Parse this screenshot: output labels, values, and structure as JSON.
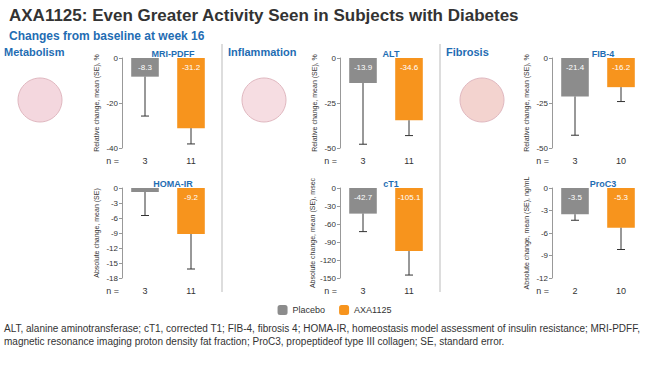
{
  "header": {
    "title": "AXA1125: Even Greater Activity Seen in Subjects with Diabetes",
    "subtitle": "Changes from baseline at week 16"
  },
  "sections": [
    "Metabolism",
    "Inflammation",
    "Fibrosis"
  ],
  "legend": "bottom",
  "footnote": "ALT, alanine aminotransferase; cT1, corrected T1; FIB-4, fibrosis 4; HOMA-IR, homeostasis model assessment of insulin resistance; MRI-PDFF, magnetic resonance imaging proton density fat fraction; ProC3, propeptideof type III collagen; SE, standard error.",
  "chart_data": [
    {
      "type": "bar",
      "title": "MRI-PDFF",
      "y_label": "Relative change, mean (SE), %",
      "x_label": "n =",
      "categories": [
        "3",
        "11"
      ],
      "ylim": [
        -40,
        0
      ],
      "yticks": [
        -40,
        -20,
        0
      ],
      "grid": false,
      "data_labels": true,
      "series": [
        {
          "name": "Placebo",
          "color": "#8c8c8c",
          "values": [
            -8.3,
            null
          ],
          "errors": [
            17.5,
            null
          ]
        },
        {
          "name": "AXA1125",
          "color": "#f7941d",
          "values": [
            null,
            -31.2
          ],
          "errors": [
            null,
            7.0
          ]
        }
      ]
    },
    {
      "type": "bar",
      "title": "HOMA-IR",
      "y_label": "Absolute change, mean (SE)",
      "x_label": "n =",
      "categories": [
        "3",
        "11"
      ],
      "ylim": [
        -18,
        0
      ],
      "yticks": [
        -18,
        -15,
        -12,
        -9,
        -6,
        -3,
        0
      ],
      "grid": false,
      "data_labels": true,
      "series": [
        {
          "name": "Placebo",
          "color": "#8c8c8c",
          "values": [
            -0.8,
            null
          ],
          "errors": [
            4.7,
            null
          ]
        },
        {
          "name": "AXA1125",
          "color": "#f7941d",
          "values": [
            null,
            -9.2
          ],
          "errors": [
            null,
            7.0
          ]
        }
      ]
    },
    {
      "type": "bar",
      "title": "ALT",
      "y_label": "Relative change, mean (SE), %",
      "x_label": "n =",
      "categories": [
        "3",
        "11"
      ],
      "ylim": [
        -50,
        0
      ],
      "yticks": [
        -50,
        -25,
        0
      ],
      "grid": false,
      "data_labels": true,
      "series": [
        {
          "name": "Placebo",
          "color": "#8c8c8c",
          "values": [
            -13.9,
            null
          ],
          "errors": [
            34.0,
            null
          ]
        },
        {
          "name": "AXA1125",
          "color": "#f7941d",
          "values": [
            null,
            -34.6
          ],
          "errors": [
            null,
            8.5
          ]
        }
      ]
    },
    {
      "type": "bar",
      "title": "cT1",
      "y_label": "Absolute change, mean (SE), msec",
      "x_label": "n =",
      "categories": [
        "3",
        "11"
      ],
      "ylim": [
        -150,
        0
      ],
      "yticks": [
        -150,
        -120,
        -90,
        -60,
        -30,
        0
      ],
      "grid": false,
      "data_labels": true,
      "series": [
        {
          "name": "Placebo",
          "color": "#8c8c8c",
          "values": [
            -42.7,
            null
          ],
          "errors": [
            30.0,
            null
          ]
        },
        {
          "name": "AXA1125",
          "color": "#f7941d",
          "values": [
            null,
            -105.1
          ],
          "errors": [
            null,
            40.0
          ]
        }
      ]
    },
    {
      "type": "bar",
      "title": "FIB-4",
      "y_label": "Relative change, mean (SE), %",
      "x_label": "n =",
      "categories": [
        "3",
        "10"
      ],
      "ylim": [
        -50,
        0
      ],
      "yticks": [
        -50,
        -25,
        0
      ],
      "grid": false,
      "data_labels": true,
      "series": [
        {
          "name": "Placebo",
          "color": "#8c8c8c",
          "values": [
            -21.4,
            null
          ],
          "errors": [
            21.5,
            null
          ]
        },
        {
          "name": "AXA1125",
          "color": "#f7941d",
          "values": [
            null,
            -16.2
          ],
          "errors": [
            null,
            8.0
          ]
        }
      ]
    },
    {
      "type": "bar",
      "title": "ProC3",
      "y_label": "Absolute change, mean (SE), ng/mL",
      "x_label": "n =",
      "categories": [
        "2",
        "10"
      ],
      "ylim": [
        -12,
        0
      ],
      "yticks": [
        -12,
        -9,
        -6,
        -3,
        0
      ],
      "grid": false,
      "data_labels": true,
      "series": [
        {
          "name": "Placebo",
          "color": "#8c8c8c",
          "values": [
            -3.5,
            null
          ],
          "errors": [
            0.8,
            null
          ]
        },
        {
          "name": "AXA1125",
          "color": "#f7941d",
          "values": [
            null,
            -5.3
          ],
          "errors": [
            null,
            2.9
          ]
        }
      ]
    }
  ]
}
